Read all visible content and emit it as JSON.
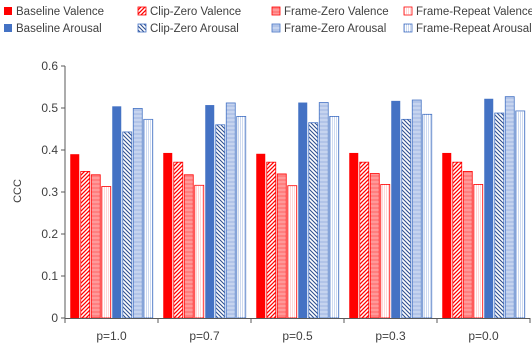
{
  "chart_data": {
    "type": "bar",
    "title": "",
    "xlabel": "",
    "ylabel": "CCC",
    "ylim": [
      0,
      0.6
    ],
    "yticks": [
      0,
      0.1,
      0.2,
      0.3,
      0.4,
      0.5,
      0.6
    ],
    "ytick_labels": [
      "0",
      "0.1",
      "0.2",
      "0.3",
      "0.4",
      "0.5",
      "0.6"
    ],
    "grid": false,
    "legend_position": "top",
    "categories": [
      "p=1.0",
      "p=0.7",
      "p=0.5",
      "p=0.3",
      "p=0.0"
    ],
    "series": [
      {
        "name": "Baseline Valence",
        "color": "#ff0000",
        "fill": "solid",
        "values": [
          0.39,
          0.393,
          0.391,
          0.393,
          0.393
        ]
      },
      {
        "name": "Clip-Zero Valence",
        "color": "#ff0000",
        "fill": "diagonal",
        "values": [
          0.349,
          0.371,
          0.371,
          0.371,
          0.371
        ]
      },
      {
        "name": "Frame-Zero Valence",
        "color": "#ff0000",
        "fill": "light",
        "values": [
          0.341,
          0.341,
          0.343,
          0.344,
          0.349
        ]
      },
      {
        "name": "Frame-Repeat Valence",
        "color": "#ff0000",
        "fill": "dotted",
        "values": [
          0.313,
          0.316,
          0.315,
          0.318,
          0.318
        ]
      },
      {
        "name": "Baseline Arousal",
        "color": "#4472c4",
        "fill": "solid",
        "values": [
          0.504,
          0.507,
          0.513,
          0.517,
          0.522
        ]
      },
      {
        "name": "Clip-Zero Arousal",
        "color": "#4472c4",
        "fill": "diagonal",
        "values": [
          0.443,
          0.46,
          0.465,
          0.473,
          0.488
        ]
      },
      {
        "name": "Frame-Zero Arousal",
        "color": "#4472c4",
        "fill": "light",
        "values": [
          0.499,
          0.512,
          0.513,
          0.519,
          0.527
        ]
      },
      {
        "name": "Frame-Repeat Arousal",
        "color": "#4472c4",
        "fill": "dotted",
        "values": [
          0.473,
          0.48,
          0.48,
          0.485,
          0.493
        ]
      }
    ]
  }
}
